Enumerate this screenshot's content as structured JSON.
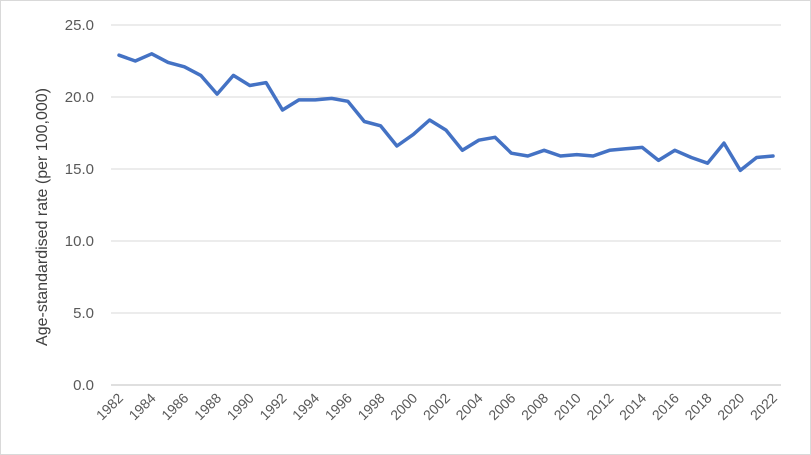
{
  "chart_data": {
    "type": "line",
    "title": "",
    "xlabel": "",
    "ylabel": "Age-standardised rate (per 100,000)",
    "ylim": [
      0,
      25
    ],
    "yticks": [
      "0.0",
      "5.0",
      "10.0",
      "15.0",
      "20.0",
      "25.0"
    ],
    "xticks": [
      "1982",
      "1984",
      "1986",
      "1988",
      "1990",
      "1992",
      "1994",
      "1996",
      "1998",
      "2000",
      "2002",
      "2004",
      "2006",
      "2008",
      "2010",
      "2012",
      "2014",
      "2016",
      "2018",
      "2020",
      "2022"
    ],
    "grid": true,
    "legend": "none",
    "line_color": "#4472C4",
    "x": [
      1982,
      1983,
      1984,
      1985,
      1986,
      1987,
      1988,
      1989,
      1990,
      1991,
      1992,
      1993,
      1994,
      1995,
      1996,
      1997,
      1998,
      1999,
      2000,
      2001,
      2002,
      2003,
      2004,
      2005,
      2006,
      2007,
      2008,
      2009,
      2010,
      2011,
      2012,
      2013,
      2014,
      2015,
      2016,
      2017,
      2018,
      2019,
      2020,
      2021,
      2022
    ],
    "values": [
      22.9,
      22.5,
      23.0,
      22.4,
      22.1,
      21.5,
      20.2,
      21.5,
      20.8,
      21.0,
      19.1,
      19.8,
      19.8,
      19.9,
      19.7,
      18.3,
      18.0,
      16.6,
      17.4,
      18.4,
      17.7,
      16.3,
      17.0,
      17.2,
      16.1,
      15.9,
      16.3,
      15.9,
      16.0,
      15.9,
      16.3,
      16.4,
      16.5,
      15.6,
      16.3,
      15.8,
      15.4,
      16.8,
      14.9,
      15.8,
      15.9
    ]
  }
}
